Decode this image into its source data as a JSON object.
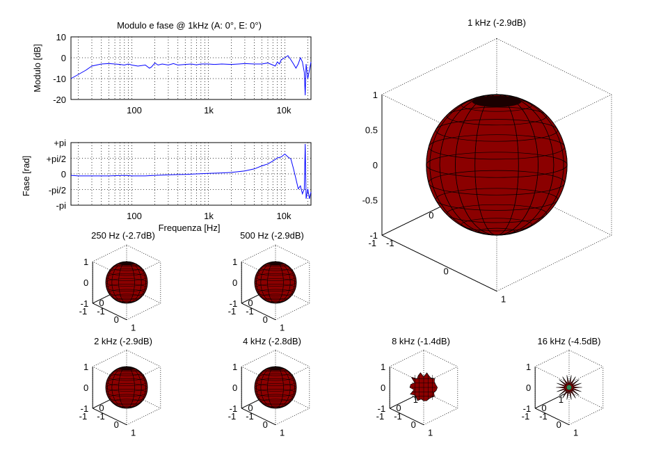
{
  "colors": {
    "trace": "#0000ff",
    "sphere": "#8b0000",
    "mesh": "#000000",
    "axis": "#000000",
    "background": "#ffffff"
  },
  "chart_data": [
    {
      "type": "line",
      "title": "Modulo e fase @ 1kHz (A: 0°, E: 0°)",
      "xlabel": "",
      "ylabel": "Modulo [dB]",
      "xscale": "log",
      "xlim": [
        16,
        22000
      ],
      "ylim": [
        -20,
        10
      ],
      "yticks": [
        10,
        0,
        -10,
        -20
      ],
      "yticklabels": [
        "10",
        "0",
        "-10",
        "-20"
      ],
      "xticklabels": [
        "100",
        "1k",
        "10k"
      ],
      "grid": "dotted",
      "series": [
        {
          "x": [
            16,
            20,
            25,
            30,
            40,
            50,
            60,
            70,
            80,
            90,
            100,
            120,
            150,
            170,
            180,
            200,
            220,
            250,
            300,
            350,
            400,
            500,
            600,
            700,
            800,
            1000,
            1200,
            1500,
            2000,
            2500,
            3000,
            4000,
            5000,
            6000,
            7000,
            7500,
            8000,
            8500,
            9000,
            10000,
            11000,
            12000,
            13000,
            14000,
            15000,
            16000,
            17000,
            18000,
            18500,
            19000,
            20000,
            22000
          ],
          "y": [
            -10,
            -8,
            -6,
            -4,
            -3,
            -2.8,
            -3,
            -3.2,
            -3.5,
            -3,
            -3.5,
            -4,
            -3.5,
            -5,
            -4.5,
            -2.5,
            -3.5,
            -3,
            -3.5,
            -2.8,
            -3.5,
            -3.2,
            -3,
            -3.4,
            -3,
            -3,
            -3.2,
            -3,
            -3.2,
            -3,
            -2.8,
            -3,
            -3,
            -2.5,
            -3.5,
            -4,
            -2,
            -3,
            -1,
            0,
            1,
            -1,
            -3,
            -5,
            -3,
            0,
            -2,
            -7,
            -18,
            -3,
            -10,
            -2
          ]
        }
      ]
    },
    {
      "type": "line",
      "title": "",
      "xlabel": "Frequenza [Hz]",
      "ylabel": "Fase [rad]",
      "xscale": "log",
      "xlim": [
        16,
        22000
      ],
      "ylim": [
        -3.1416,
        3.1416
      ],
      "yticks": [
        3.1416,
        1.5708,
        0,
        -1.5708,
        -3.1416
      ],
      "yticklabels": [
        "+pi",
        "+pi/2",
        "0",
        "-pi/2",
        "-pi"
      ],
      "xticklabels": [
        "100",
        "1k",
        "10k"
      ],
      "grid": "dotted",
      "series": [
        {
          "x": [
            16,
            20,
            30,
            50,
            80,
            100,
            150,
            200,
            300,
            500,
            700,
            1000,
            1500,
            2000,
            3000,
            4000,
            5000,
            6000,
            7000,
            8000,
            9000,
            10000,
            11000,
            12000,
            13000,
            14000,
            15000,
            16000,
            17000,
            18000,
            18500,
            19000,
            19500,
            20000,
            21000,
            22000
          ],
          "y": [
            -0.15,
            -0.2,
            -0.2,
            -0.2,
            -0.15,
            -0.2,
            -0.2,
            -0.15,
            -0.1,
            -0.05,
            0,
            0.05,
            0.1,
            0.15,
            0.3,
            0.5,
            0.8,
            1.0,
            1.3,
            1.6,
            1.7,
            2.0,
            1.7,
            1.5,
            0.5,
            -0.5,
            -1.5,
            -1.2,
            -2.0,
            -1.5,
            3.0,
            -2.5,
            -2.0,
            -1.5,
            -2.5,
            -1.8
          ]
        }
      ]
    },
    {
      "type": "other",
      "title": "1 kHz (-2.9dB)",
      "ztick_labels": [
        "1",
        "0.5",
        "0",
        "-0.5",
        "-1"
      ],
      "xtick_labels": [
        "1",
        "0",
        "-1"
      ],
      "ytick_labels": [
        "-1",
        "0",
        "1"
      ],
      "radius": 1.0
    },
    {
      "type": "other",
      "title": "250 Hz (-2.7dB)",
      "ztick_labels": [
        "1",
        "0",
        "-1"
      ],
      "xtick_labels": [
        "1",
        "0",
        "-1"
      ],
      "ytick_labels": [
        "-1",
        "0",
        "1"
      ],
      "radius": 1.0
    },
    {
      "type": "other",
      "title": "500 Hz (-2.9dB)",
      "ztick_labels": [
        "1",
        "0",
        "-1"
      ],
      "xtick_labels": [
        "1",
        "0",
        "-1"
      ],
      "ytick_labels": [
        "-1",
        "0",
        "1"
      ],
      "radius": 1.0
    },
    {
      "type": "other",
      "title": "2 kHz (-2.9dB)",
      "ztick_labels": [
        "1",
        "0",
        "-1"
      ],
      "xtick_labels": [
        "1",
        "0",
        "-1"
      ],
      "ytick_labels": [
        "-1",
        "0",
        "1"
      ],
      "radius": 1.0
    },
    {
      "type": "other",
      "title": "4 kHz (-2.8dB)",
      "ztick_labels": [
        "1",
        "0",
        "-1"
      ],
      "xtick_labels": [
        "1",
        "0",
        "-1"
      ],
      "ytick_labels": [
        "-1",
        "0",
        "1"
      ],
      "radius": 1.0
    },
    {
      "type": "other",
      "title": "8 kHz (-1.4dB)",
      "ztick_labels": [
        "1",
        "0",
        "-1"
      ],
      "xtick_labels": [
        "1",
        "0",
        "-1"
      ],
      "ytick_labels": [
        "-1",
        "0",
        "1"
      ],
      "radius": 0.6
    },
    {
      "type": "other",
      "title": "16 kHz (-4.5dB)",
      "ztick_labels": [
        "1",
        "0",
        "-1"
      ],
      "xtick_labels": [
        "1",
        "0",
        "-1"
      ],
      "ytick_labels": [
        "-1",
        "0",
        "1"
      ],
      "radius": 0.5
    }
  ]
}
